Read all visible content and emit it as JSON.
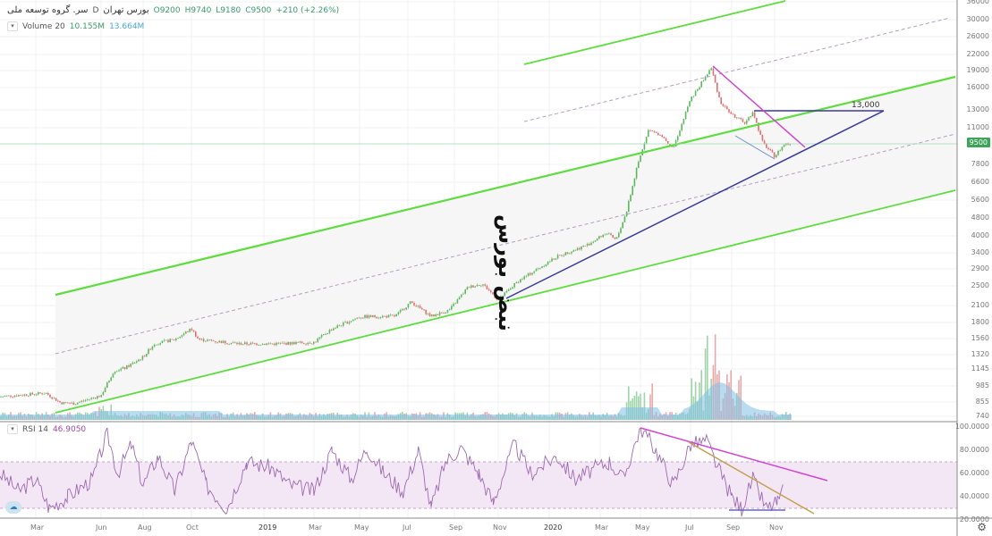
{
  "header": {
    "symbol": "سر. گروه توسعه ملی",
    "exchange": "بورس تهران",
    "interval": "D",
    "open": "O9200",
    "high": "H9740",
    "low": "L9180",
    "close": "C9500",
    "change": "+210 (+2.26%)"
  },
  "volume_legend": {
    "label": "Volume 20",
    "value1": "10.155M",
    "value2": "13.664M"
  },
  "rsi_legend": {
    "label": "RSI 14",
    "value": "46.9050"
  },
  "watermark": "نبض بورس",
  "annotation_label": "13,000",
  "price_axis": {
    "scale": "log",
    "labels": [
      "36000",
      "30000",
      "26000",
      "22000",
      "19000",
      "16000",
      "13000",
      "11000",
      "7800",
      "6600",
      "5600",
      "4800",
      "4000",
      "3400",
      "2900",
      "2500",
      "2100",
      "1800",
      "1560",
      "1320",
      "1145",
      "985",
      "855",
      "740"
    ],
    "last_price": "9500"
  },
  "rsi_axis": {
    "labels": [
      "100.0000",
      "80.0000",
      "60.0000",
      "40.0000",
      "20.0000"
    ],
    "band": [
      30,
      70
    ]
  },
  "time_axis": {
    "labels": [
      "Mar",
      "Jun",
      "Aug",
      "Oct",
      "2019",
      "Mar",
      "May",
      "Jul",
      "Sep",
      "Nov",
      "2020",
      "Mar",
      "May",
      "Jul",
      "Sep",
      "Nov"
    ]
  },
  "colors": {
    "up": "#5cb85c",
    "down": "#e07070",
    "channel": "#5fdc3f",
    "trend": "#3a3a9a",
    "magenta": "#d044d0",
    "rsi": "#9c6ab0",
    "rsi_band": "#f3e6f5",
    "volume": "#7fc0e6",
    "last_price": "#3da45a"
  },
  "chart_data": {
    "type": "candlestick",
    "price_path": [
      [
        "2018-01-20",
        890
      ],
      [
        "2018-03-15",
        920
      ],
      [
        "2018-04-05",
        840
      ],
      [
        "2018-04-25",
        835
      ],
      [
        "2018-06-01",
        900
      ],
      [
        "2018-06-20",
        1140
      ],
      [
        "2018-07-05",
        1160
      ],
      [
        "2018-08-01",
        1290
      ],
      [
        "2018-08-15",
        1460
      ],
      [
        "2018-09-10",
        1520
      ],
      [
        "2018-10-01",
        1680
      ],
      [
        "2018-10-10",
        1520
      ],
      [
        "2018-12-01",
        1460
      ],
      [
        "2019-01-15",
        1460
      ],
      [
        "2019-03-01",
        1480
      ],
      [
        "2019-03-25",
        1680
      ],
      [
        "2019-05-01",
        1880
      ],
      [
        "2019-06-15",
        1890
      ],
      [
        "2019-07-05",
        2160
      ],
      [
        "2019-08-01",
        1890
      ],
      [
        "2019-08-25",
        2000
      ],
      [
        "2019-09-20",
        2480
      ],
      [
        "2019-10-10",
        2560
      ],
      [
        "2019-11-01",
        2200
      ],
      [
        "2019-11-25",
        2630
      ],
      [
        "2020-01-10",
        3300
      ],
      [
        "2020-02-15",
        3690
      ],
      [
        "2020-03-10",
        4120
      ],
      [
        "2020-03-25",
        3850
      ],
      [
        "2020-04-10",
        5050
      ],
      [
        "2020-04-25",
        7470
      ],
      [
        "2020-05-10",
        10800
      ],
      [
        "2020-05-25",
        10400
      ],
      [
        "2020-06-10",
        9140
      ],
      [
        "2020-07-01",
        14400
      ],
      [
        "2020-07-15",
        16400
      ],
      [
        "2020-08-01",
        19400
      ],
      [
        "2020-08-15",
        14000
      ],
      [
        "2020-09-01",
        12500
      ],
      [
        "2020-09-20",
        11500
      ],
      [
        "2020-10-01",
        12900
      ],
      [
        "2020-10-15",
        9600
      ],
      [
        "2020-11-01",
        8440
      ],
      [
        "2020-11-15",
        9500
      ]
    ],
    "rsi_path": [
      [
        "2018-01-20",
        60
      ],
      [
        "2018-02-10",
        45
      ],
      [
        "2018-03-01",
        55
      ],
      [
        "2018-03-20",
        30
      ],
      [
        "2018-04-15",
        40
      ],
      [
        "2018-05-20",
        55
      ],
      [
        "2018-06-10",
        95
      ],
      [
        "2018-06-25",
        60
      ],
      [
        "2018-07-15",
        85
      ],
      [
        "2018-08-01",
        50
      ],
      [
        "2018-08-20",
        75
      ],
      [
        "2018-09-10",
        45
      ],
      [
        "2018-10-01",
        88
      ],
      [
        "2018-10-20",
        50
      ],
      [
        "2018-11-15",
        30
      ],
      [
        "2018-12-10",
        70
      ],
      [
        "2019-01-10",
        65
      ],
      [
        "2019-02-01",
        50
      ],
      [
        "2019-03-01",
        45
      ],
      [
        "2019-03-25",
        80
      ],
      [
        "2019-04-20",
        55
      ],
      [
        "2019-05-10",
        82
      ],
      [
        "2019-06-01",
        60
      ],
      [
        "2019-06-25",
        45
      ],
      [
        "2019-07-15",
        80
      ],
      [
        "2019-08-01",
        30
      ],
      [
        "2019-08-20",
        70
      ],
      [
        "2019-09-10",
        82
      ],
      [
        "2019-10-05",
        60
      ],
      [
        "2019-10-25",
        35
      ],
      [
        "2019-11-20",
        85
      ],
      [
        "2019-12-10",
        60
      ],
      [
        "2020-01-10",
        75
      ],
      [
        "2020-02-01",
        55
      ],
      [
        "2020-02-25",
        65
      ],
      [
        "2020-03-15",
        70
      ],
      [
        "2020-04-05",
        55
      ],
      [
        "2020-05-01",
        100
      ],
      [
        "2020-05-20",
        80
      ],
      [
        "2020-06-10",
        50
      ],
      [
        "2020-07-01",
        85
      ],
      [
        "2020-07-25",
        88
      ],
      [
        "2020-08-15",
        60
      ],
      [
        "2020-09-01",
        40
      ],
      [
        "2020-09-15",
        30
      ],
      [
        "2020-10-01",
        55
      ],
      [
        "2020-10-20",
        30
      ],
      [
        "2020-11-05",
        35
      ],
      [
        "2020-11-15",
        47
      ]
    ]
  }
}
